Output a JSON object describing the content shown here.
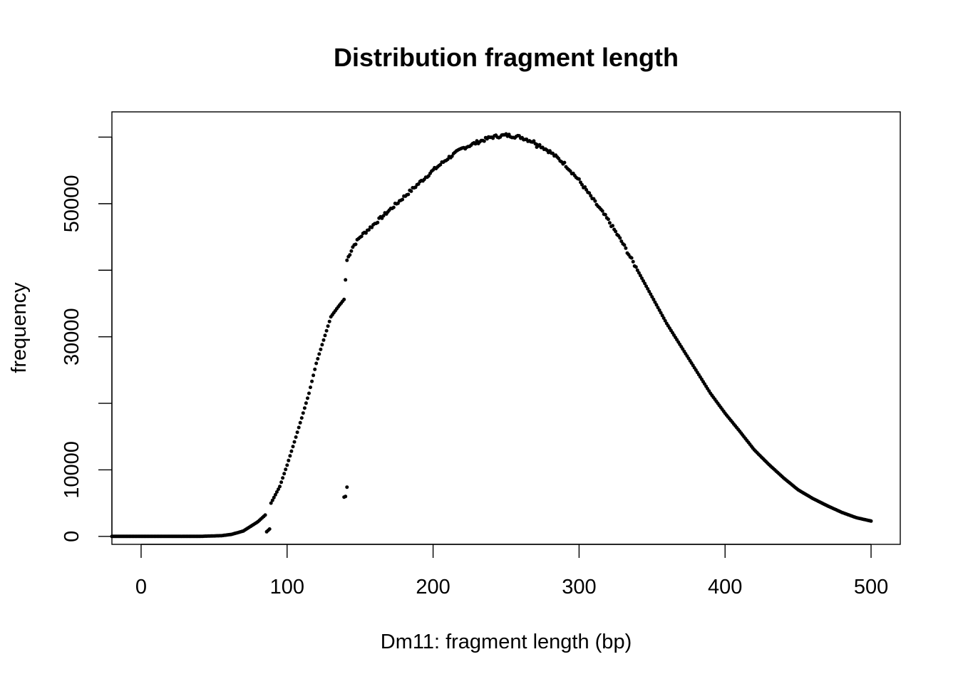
{
  "chart_data": {
    "type": "scatter",
    "title": "Distribution fragment length",
    "xlabel": "Dm11: fragment length (bp)",
    "ylabel": "frequency",
    "xlim": [
      -20,
      520
    ],
    "ylim": [
      -1200,
      63800
    ],
    "x_ticks": [
      0,
      100,
      200,
      300,
      400,
      500
    ],
    "y_ticks": [
      0,
      10000,
      20000,
      30000,
      40000,
      50000,
      60000
    ],
    "y_tick_labels_shown": [
      0,
      10000,
      30000,
      50000
    ],
    "grid": false,
    "legend": "none",
    "point_color": "#000000",
    "curve_anchors": [
      [
        -20,
        0
      ],
      [
        10,
        0
      ],
      [
        40,
        0
      ],
      [
        55,
        100
      ],
      [
        62,
        300
      ],
      [
        70,
        800
      ],
      [
        75,
        1500
      ],
      [
        80,
        2200
      ],
      [
        85,
        3200
      ],
      [
        89,
        5000
      ],
      [
        95,
        7500
      ],
      [
        100,
        10700
      ],
      [
        105,
        14200
      ],
      [
        110,
        17800
      ],
      [
        115,
        21500
      ],
      [
        120,
        26000
      ],
      [
        125,
        29500
      ],
      [
        130,
        33000
      ],
      [
        135,
        34500
      ],
      [
        139,
        35600
      ],
      [
        141,
        41500
      ],
      [
        145,
        43500
      ],
      [
        150,
        45000
      ],
      [
        160,
        47000
      ],
      [
        170,
        49000
      ],
      [
        180,
        51000
      ],
      [
        190,
        53000
      ],
      [
        200,
        55000
      ],
      [
        210,
        56800
      ],
      [
        220,
        58300
      ],
      [
        230,
        59200
      ],
      [
        240,
        60000
      ],
      [
        250,
        60300
      ],
      [
        260,
        60000
      ],
      [
        270,
        59200
      ],
      [
        280,
        57800
      ],
      [
        290,
        56000
      ],
      [
        300,
        53500
      ],
      [
        310,
        50500
      ],
      [
        320,
        47500
      ],
      [
        330,
        44000
      ],
      [
        340,
        40000
      ],
      [
        350,
        36000
      ],
      [
        360,
        32000
      ],
      [
        370,
        28500
      ],
      [
        380,
        25000
      ],
      [
        390,
        21500
      ],
      [
        400,
        18500
      ],
      [
        410,
        15800
      ],
      [
        420,
        13000
      ],
      [
        430,
        10800
      ],
      [
        440,
        8800
      ],
      [
        450,
        7000
      ],
      [
        460,
        5700
      ],
      [
        470,
        4600
      ],
      [
        480,
        3600
      ],
      [
        490,
        2800
      ],
      [
        500,
        2300
      ]
    ],
    "outlier_points": [
      [
        86,
        700
      ],
      [
        87,
        900
      ],
      [
        88,
        1100
      ],
      [
        139,
        5900
      ],
      [
        140,
        6000
      ],
      [
        141,
        7400
      ],
      [
        271,
        58500
      ]
    ]
  }
}
